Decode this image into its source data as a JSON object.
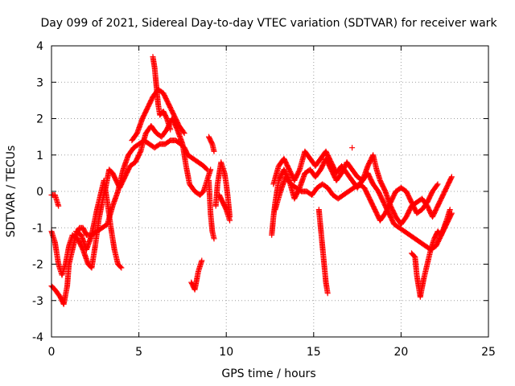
{
  "chart_data": {
    "type": "scatter",
    "title": "Day 099 of 2021, Sidereal Day-to-day VTEC variation (SDTVAR) for receiver wark",
    "xlabel": "GPS time / hours",
    "ylabel": "SDTVAR / TECUs",
    "xlim": [
      0,
      25
    ],
    "ylim": [
      -4,
      4
    ],
    "x_ticks": [
      "0",
      "5",
      "10",
      "15",
      "20",
      "25"
    ],
    "y_ticks": [
      "4",
      "3",
      "2",
      "1",
      "0",
      "-1",
      "-2",
      "-3",
      "-4"
    ],
    "grid": true,
    "marker": "+",
    "series": [
      {
        "name": "SDTVAR",
        "color": "#ff0000",
        "segments": [
          [
            [
              0.0,
              -0.1
            ],
            [
              0.2,
              -0.1
            ],
            [
              0.4,
              -0.4
            ]
          ],
          [
            [
              0.0,
              -2.6
            ],
            [
              0.2,
              -2.7
            ],
            [
              0.5,
              -2.9
            ],
            [
              0.7,
              -3.1
            ],
            [
              0.9,
              -2.6
            ],
            [
              1.0,
              -2.0
            ],
            [
              1.2,
              -1.6
            ],
            [
              1.4,
              -1.2
            ],
            [
              1.6,
              -1.0
            ],
            [
              1.8,
              -1.0
            ],
            [
              2.0,
              -1.2
            ],
            [
              2.3,
              -1.2
            ],
            [
              2.6,
              -1.1
            ],
            [
              2.9,
              -1.0
            ],
            [
              3.2,
              -0.9
            ],
            [
              3.5,
              -0.4
            ],
            [
              3.8,
              0.0
            ],
            [
              4.1,
              0.6
            ],
            [
              4.4,
              1.0
            ],
            [
              4.7,
              1.2
            ],
            [
              5.0,
              1.3
            ],
            [
              5.3,
              1.4
            ],
            [
              5.6,
              1.3
            ],
            [
              5.9,
              1.2
            ],
            [
              6.2,
              1.3
            ],
            [
              6.5,
              1.3
            ],
            [
              6.8,
              1.4
            ],
            [
              7.1,
              1.4
            ],
            [
              7.4,
              1.3
            ],
            [
              7.6,
              1.2
            ],
            [
              7.8,
              1.0
            ],
            [
              8.1,
              0.9
            ],
            [
              8.4,
              0.8
            ],
            [
              8.7,
              0.7
            ],
            [
              8.9,
              0.6
            ]
          ],
          [
            [
              0.0,
              -1.1
            ],
            [
              0.2,
              -1.4
            ],
            [
              0.4,
              -2.0
            ],
            [
              0.6,
              -2.3
            ],
            [
              0.8,
              -2.0
            ],
            [
              1.0,
              -1.5
            ],
            [
              1.2,
              -1.2
            ],
            [
              1.5,
              -1.3
            ],
            [
              1.8,
              -1.6
            ],
            [
              2.1,
              -2.0
            ],
            [
              2.3,
              -2.1
            ],
            [
              2.5,
              -1.5
            ],
            [
              2.7,
              -0.8
            ],
            [
              2.9,
              -0.3
            ],
            [
              3.1,
              0.1
            ],
            [
              3.3,
              0.6
            ],
            [
              3.5,
              0.5
            ],
            [
              3.7,
              0.3
            ],
            [
              3.9,
              0.1
            ],
            [
              4.2,
              0.4
            ],
            [
              4.5,
              0.7
            ],
            [
              4.8,
              0.8
            ],
            [
              5.1,
              1.1
            ],
            [
              5.4,
              1.6
            ],
            [
              5.7,
              1.8
            ],
            [
              6.0,
              1.6
            ],
            [
              6.3,
              1.5
            ],
            [
              6.6,
              1.7
            ],
            [
              6.9,
              2.0
            ],
            [
              7.2,
              1.7
            ],
            [
              7.5,
              1.3
            ],
            [
              7.7,
              0.7
            ],
            [
              7.9,
              0.2
            ],
            [
              8.2,
              0.0
            ],
            [
              8.5,
              -0.1
            ],
            [
              8.7,
              0.0
            ],
            [
              8.9,
              0.3
            ],
            [
              9.1,
              0.6
            ]
          ],
          [
            [
              1.4,
              -1.1
            ],
            [
              1.7,
              -1.2
            ],
            [
              2.0,
              -1.6
            ],
            [
              2.3,
              -1.2
            ],
            [
              2.6,
              -0.5
            ],
            [
              2.8,
              -0.1
            ],
            [
              3.0,
              0.3
            ],
            [
              3.2,
              -0.3
            ],
            [
              3.4,
              -1.0
            ],
            [
              3.6,
              -1.6
            ],
            [
              3.8,
              -2.0
            ],
            [
              4.0,
              -2.1
            ]
          ],
          [
            [
              4.6,
              1.4
            ],
            [
              4.9,
              1.6
            ],
            [
              5.2,
              2.0
            ],
            [
              5.5,
              2.3
            ],
            [
              5.8,
              2.6
            ],
            [
              6.1,
              2.8
            ],
            [
              6.4,
              2.7
            ],
            [
              6.7,
              2.4
            ],
            [
              7.0,
              2.1
            ],
            [
              7.3,
              1.8
            ],
            [
              7.6,
              1.6
            ]
          ],
          [
            [
              5.8,
              3.7
            ],
            [
              5.9,
              3.4
            ],
            [
              6.0,
              2.9
            ],
            [
              6.1,
              2.4
            ],
            [
              6.2,
              2.1
            ],
            [
              6.4,
              2.2
            ],
            [
              6.6,
              2.0
            ],
            [
              6.8,
              1.7
            ]
          ],
          [
            [
              8.0,
              -2.5
            ],
            [
              8.2,
              -2.7
            ],
            [
              8.4,
              -2.2
            ],
            [
              8.6,
              -1.9
            ]
          ],
          [
            [
              9.0,
              1.5
            ],
            [
              9.2,
              1.3
            ],
            [
              9.3,
              1.1
            ]
          ],
          [
            [
              9.0,
              0.3
            ],
            [
              9.1,
              -0.6
            ],
            [
              9.2,
              -1.1
            ],
            [
              9.3,
              -1.3
            ]
          ],
          [
            [
              9.4,
              -0.4
            ],
            [
              9.5,
              0.2
            ],
            [
              9.7,
              0.8
            ],
            [
              9.9,
              0.5
            ],
            [
              10.0,
              0.2
            ],
            [
              10.1,
              -0.2
            ],
            [
              10.2,
              -0.7
            ]
          ],
          [
            [
              9.6,
              -0.1
            ],
            [
              9.8,
              -0.3
            ],
            [
              10.0,
              -0.5
            ],
            [
              10.2,
              -0.8
            ]
          ],
          [
            [
              12.6,
              -1.2
            ],
            [
              12.7,
              -0.7
            ],
            [
              12.8,
              -0.3
            ],
            [
              13.0,
              0.3
            ],
            [
              13.3,
              0.6
            ],
            [
              13.6,
              0.3
            ],
            [
              13.9,
              -0.2
            ],
            [
              14.2,
              0.1
            ],
            [
              14.5,
              0.5
            ],
            [
              14.8,
              0.6
            ],
            [
              15.1,
              0.4
            ],
            [
              15.4,
              0.6
            ],
            [
              15.7,
              0.9
            ],
            [
              16.0,
              0.6
            ],
            [
              16.3,
              0.3
            ],
            [
              16.6,
              0.5
            ],
            [
              16.9,
              0.8
            ],
            [
              17.2,
              0.6
            ],
            [
              17.5,
              0.4
            ],
            [
              17.8,
              0.3
            ],
            [
              18.1,
              0.5
            ],
            [
              18.4,
              0.2
            ],
            [
              18.7,
              0.0
            ],
            [
              19.0,
              -0.3
            ],
            [
              19.3,
              -0.6
            ],
            [
              19.6,
              -0.9
            ],
            [
              19.9,
              -1.0
            ],
            [
              20.2,
              -1.1
            ],
            [
              20.5,
              -1.2
            ],
            [
              20.8,
              -1.3
            ],
            [
              21.1,
              -1.4
            ],
            [
              21.4,
              -1.5
            ],
            [
              21.7,
              -1.6
            ],
            [
              22.0,
              -1.5
            ],
            [
              22.3,
              -1.2
            ],
            [
              22.6,
              -0.8
            ],
            [
              22.8,
              -0.5
            ]
          ],
          [
            [
              12.7,
              0.2
            ],
            [
              13.0,
              0.7
            ],
            [
              13.3,
              0.9
            ],
            [
              13.6,
              0.6
            ],
            [
              13.9,
              0.3
            ],
            [
              14.2,
              0.6
            ],
            [
              14.5,
              1.1
            ],
            [
              14.8,
              0.9
            ],
            [
              15.1,
              0.7
            ],
            [
              15.4,
              0.9
            ],
            [
              15.7,
              1.1
            ],
            [
              16.0,
              0.8
            ],
            [
              16.3,
              0.5
            ],
            [
              16.6,
              0.7
            ],
            [
              16.9,
              0.5
            ],
            [
              17.2,
              0.3
            ],
            [
              17.5,
              0.1
            ],
            [
              17.8,
              0.3
            ],
            [
              18.1,
              0.7
            ],
            [
              18.4,
              1.0
            ],
            [
              18.6,
              0.6
            ],
            [
              18.8,
              0.3
            ],
            [
              19.1,
              0.0
            ],
            [
              19.4,
              -0.4
            ],
            [
              19.7,
              -0.7
            ],
            [
              20.0,
              -0.9
            ],
            [
              20.3,
              -0.7
            ],
            [
              20.6,
              -0.4
            ],
            [
              20.9,
              -0.3
            ],
            [
              21.2,
              -0.2
            ],
            [
              21.5,
              -0.4
            ],
            [
              21.8,
              -0.7
            ],
            [
              22.1,
              -0.4
            ],
            [
              22.4,
              -0.1
            ],
            [
              22.7,
              0.2
            ],
            [
              22.9,
              0.4
            ]
          ],
          [
            [
              12.8,
              -0.5
            ],
            [
              13.1,
              0.0
            ],
            [
              13.4,
              0.4
            ],
            [
              13.7,
              0.2
            ],
            [
              14.0,
              0.1
            ],
            [
              14.3,
              0.0
            ],
            [
              14.6,
              0.0
            ],
            [
              14.9,
              -0.1
            ],
            [
              15.2,
              0.1
            ],
            [
              15.5,
              0.2
            ],
            [
              15.8,
              0.1
            ],
            [
              16.1,
              -0.1
            ],
            [
              16.4,
              -0.2
            ],
            [
              16.7,
              -0.1
            ],
            [
              17.0,
              0.0
            ],
            [
              17.3,
              0.1
            ],
            [
              17.6,
              0.2
            ],
            [
              17.9,
              0.1
            ],
            [
              18.2,
              -0.2
            ],
            [
              18.5,
              -0.5
            ],
            [
              18.8,
              -0.8
            ],
            [
              19.1,
              -0.6
            ],
            [
              19.4,
              -0.3
            ],
            [
              19.7,
              0.0
            ],
            [
              20.0,
              0.1
            ],
            [
              20.3,
              0.0
            ],
            [
              20.6,
              -0.3
            ],
            [
              20.9,
              -0.6
            ],
            [
              21.2,
              -0.5
            ],
            [
              21.5,
              -0.3
            ],
            [
              21.8,
              0.0
            ],
            [
              22.1,
              0.2
            ]
          ],
          [
            [
              15.3,
              -0.5
            ],
            [
              15.4,
              -1.0
            ],
            [
              15.5,
              -1.5
            ],
            [
              15.6,
              -2.0
            ],
            [
              15.7,
              -2.5
            ],
            [
              15.8,
              -2.8
            ]
          ],
          [
            [
              20.6,
              -1.7
            ],
            [
              20.8,
              -1.8
            ],
            [
              20.9,
              -2.3
            ],
            [
              21.0,
              -2.6
            ],
            [
              21.1,
              -2.9
            ],
            [
              21.3,
              -2.4
            ],
            [
              21.5,
              -2.0
            ],
            [
              21.7,
              -1.6
            ],
            [
              21.9,
              -1.3
            ],
            [
              22.1,
              -1.1
            ],
            [
              22.3,
              -1.2
            ],
            [
              22.5,
              -1.0
            ],
            [
              22.7,
              -0.8
            ],
            [
              22.9,
              -0.6
            ]
          ],
          [
            [
              17.2,
              1.2
            ]
          ]
        ]
      }
    ]
  }
}
